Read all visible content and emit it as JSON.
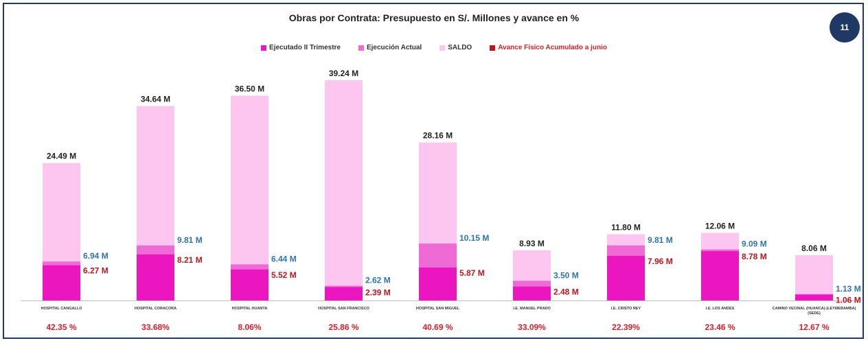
{
  "page_number": "11",
  "colors": {
    "executed": "#ec16c1",
    "current": "#f06ad6",
    "balance": "#fcc6f0",
    "physical": "#c0161e",
    "current_label": "#2e74b5",
    "frame": "#1f3864"
  },
  "chart_data": {
    "type": "bar",
    "title": "Obras por Contrata: Presupuesto en S/. Millones y avance en %",
    "legend_position": "top",
    "grid": false,
    "ylim": [
      0,
      39.24
    ],
    "legend": [
      {
        "label": "Ejecutado II Trimestre",
        "color": "#ec16c1"
      },
      {
        "label": "Ejecución Actual",
        "color": "#f06ad6"
      },
      {
        "label": "SALDO",
        "color": "#fcc6f0"
      },
      {
        "label": "Avance Físico Acumulado a junio",
        "color": "#c0161e"
      }
    ],
    "categories": [
      "HOSPITAL CANGALLO",
      "HOSPITAL CORACORA",
      "HOSPITAL HUANTA",
      "HOSPITAL SAN FRANCISCO",
      "HOSPITAL SAN MIGUEL",
      "I.E. MANUEL PRADO",
      "I.E. CRISTO REY",
      "I.E. LOS ANDES",
      "CAMINO VECINAL (HUANCA)-(LEYMEBAMBA) (SEDE)"
    ],
    "totals": [
      24.49,
      34.64,
      36.5,
      39.24,
      28.16,
      8.93,
      11.8,
      12.06,
      8.06
    ],
    "executed": [
      6.27,
      8.21,
      5.52,
      2.39,
      5.87,
      2.48,
      7.96,
      8.78,
      1.06
    ],
    "current": [
      6.94,
      9.81,
      6.44,
      2.62,
      10.15,
      3.5,
      9.81,
      9.09,
      1.13
    ],
    "total_labels": [
      "24.49 M",
      "34.64 M",
      "36.50 M",
      "39.24 M",
      "28.16 M",
      "8.93 M",
      "11.80 M",
      "12.06 M",
      "8.06 M"
    ],
    "executed_labels": [
      "6.27 M",
      "8.21 M",
      "5.52 M",
      "2.39 M",
      "5.87 M",
      "2.48 M",
      "7.96 M",
      "8.78 M",
      "1.06 M"
    ],
    "current_labels": [
      "6.94 M",
      "9.81 M",
      "6.44 M",
      "2.62 M",
      "10.15 M",
      "3.50 M",
      "9.81 M",
      "9.09 M",
      "1.13 M"
    ],
    "physical_progress_labels": [
      "42.35 %",
      "33.68%",
      "8.06%",
      "25.86 %",
      "40.69 %",
      "33.09%",
      "22.39%",
      "23.46 %",
      "12.67 %"
    ]
  }
}
